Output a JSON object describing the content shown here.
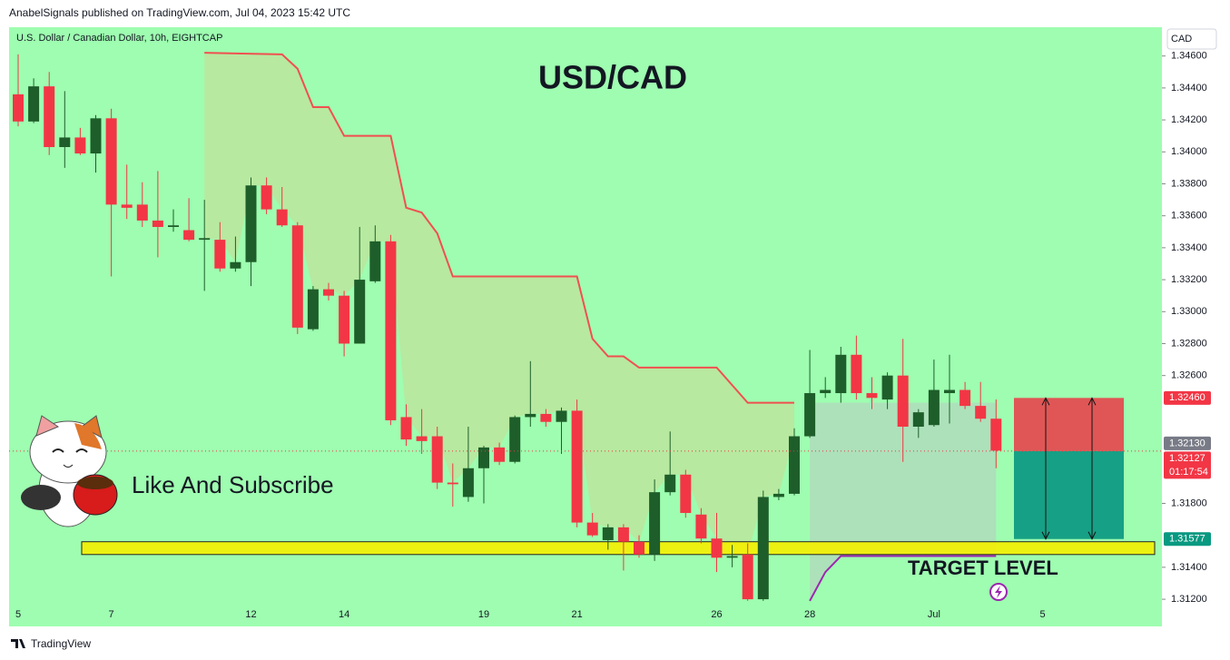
{
  "header": "AnabelSignals published on TradingView.com, Jul 04, 2023 15:42 UTC",
  "footer": "TradingView",
  "chart_data": {
    "type": "candlestick",
    "symbol": "U.S. Dollar / Canadian Dollar, 10h, EIGHTCAP",
    "title": "USD/CAD",
    "currency": "CAD",
    "annotations": [
      "Like And Subscribe",
      "TARGET LEVEL"
    ],
    "up_color": "#1e5e2a",
    "down_color": "#f23645",
    "background": "#9efdb0",
    "open": [
      1.3436,
      1.3419,
      1.3441,
      1.3403,
      1.3409,
      1.3399,
      1.3421,
      1.3367,
      1.3367,
      1.3357,
      1.3353,
      1.3351,
      1.3345,
      1.3345,
      1.3327,
      1.3331,
      1.3379,
      1.3364,
      1.3354,
      1.3289,
      1.3314,
      1.331,
      1.328,
      1.3319,
      1.3344,
      1.3234,
      1.3222,
      1.3222,
      1.3193,
      1.3184,
      1.3202,
      1.3215,
      1.3206,
      1.3234,
      1.3236,
      1.3231,
      1.3238,
      1.3168,
      1.3157,
      1.3165,
      1.3156,
      1.3148,
      1.3187,
      1.3198,
      1.3173,
      1.3158,
      1.3146,
      1.3148,
      1.312,
      1.3184,
      1.3186,
      1.3222,
      1.3249,
      1.3249,
      1.3273,
      1.3249,
      1.3245,
      1.326,
      1.3228,
      1.3229,
      1.3249,
      1.3251,
      1.3241,
      1.3233
    ],
    "high": [
      1.3461,
      1.3446,
      1.345,
      1.3438,
      1.3415,
      1.3423,
      1.3427,
      1.3392,
      1.3381,
      1.3388,
      1.3364,
      1.3371,
      1.337,
      1.3356,
      1.3347,
      1.3384,
      1.3384,
      1.3378,
      1.3356,
      1.3316,
      1.3318,
      1.3313,
      1.3353,
      1.3354,
      1.3348,
      1.3242,
      1.3239,
      1.3228,
      1.3205,
      1.3228,
      1.3216,
      1.3218,
      1.3235,
      1.3269,
      1.3239,
      1.324,
      1.3245,
      1.3174,
      1.3167,
      1.3167,
      1.316,
      1.3195,
      1.3225,
      1.3201,
      1.3177,
      1.3174,
      1.3154,
      1.3155,
      1.3188,
      1.3189,
      1.3227,
      1.3276,
      1.3259,
      1.3278,
      1.3285,
      1.3259,
      1.3262,
      1.3283,
      1.3239,
      1.327,
      1.3273,
      1.3256,
      1.3256,
      1.3245
    ],
    "low": [
      1.3416,
      1.3418,
      1.3398,
      1.339,
      1.3398,
      1.3387,
      1.3322,
      1.3358,
      1.3353,
      1.3334,
      1.335,
      1.3344,
      1.3313,
      1.3325,
      1.3325,
      1.3316,
      1.3361,
      1.3353,
      1.3286,
      1.3288,
      1.3307,
      1.3272,
      1.328,
      1.3318,
      1.3229,
      1.3216,
      1.3211,
      1.3189,
      1.3178,
      1.3181,
      1.318,
      1.3204,
      1.3205,
      1.3228,
      1.3228,
      1.3211,
      1.3165,
      1.3159,
      1.3151,
      1.3138,
      1.3146,
      1.3144,
      1.3185,
      1.3171,
      1.3155,
      1.3137,
      1.314,
      1.3119,
      1.3119,
      1.3182,
      1.3185,
      1.3221,
      1.3246,
      1.3243,
      1.3245,
      1.3239,
      1.3239,
      1.3206,
      1.3221,
      1.3228,
      1.323,
      1.3239,
      1.3231,
      1.3202
    ],
    "close": [
      1.3419,
      1.3441,
      1.3403,
      1.3409,
      1.3399,
      1.3421,
      1.3367,
      1.3365,
      1.3357,
      1.3353,
      1.3354,
      1.3345,
      1.3346,
      1.3327,
      1.3331,
      1.3379,
      1.3364,
      1.3354,
      1.329,
      1.3314,
      1.331,
      1.328,
      1.332,
      1.3344,
      1.3232,
      1.322,
      1.3219,
      1.3193,
      1.3192,
      1.3202,
      1.3215,
      1.3206,
      1.3234,
      1.3236,
      1.3231,
      1.3238,
      1.3168,
      1.316,
      1.3165,
      1.3156,
      1.3148,
      1.3187,
      1.3198,
      1.3174,
      1.3158,
      1.3146,
      1.3147,
      1.312,
      1.3184,
      1.3186,
      1.3222,
      1.3249,
      1.3251,
      1.3273,
      1.3249,
      1.3246,
      1.326,
      1.3228,
      1.3237,
      1.3251,
      1.3251,
      1.3241,
      1.3233,
      1.3213
    ],
    "trend": {
      "color": "#f05050",
      "x": [
        12,
        17,
        18,
        19,
        20,
        21,
        24,
        25,
        26,
        27,
        28,
        36,
        37,
        38,
        39,
        40,
        45,
        47,
        50
      ],
      "values": [
        1.3462,
        1.3461,
        1.3452,
        1.3428,
        1.3428,
        1.341,
        1.341,
        1.3365,
        1.3362,
        1.3349,
        1.3322,
        1.3322,
        1.3283,
        1.3272,
        1.3272,
        1.3265,
        1.3265,
        1.3243,
        1.3243
      ]
    },
    "trend2": {
      "color": "#9c27b0",
      "x": [
        51,
        52,
        53,
        63
      ],
      "values": [
        1.3119,
        1.3137,
        1.3147,
        1.3147
      ]
    },
    "target_zone": [
      1.3148,
      1.3156
    ],
    "position": {
      "stop": 1.3246,
      "entry": 1.32127,
      "target": 1.31577
    },
    "price_tags": [
      {
        "value": 1.3246,
        "label": "1.32460",
        "color": "#f23645"
      },
      {
        "value": 1.3213,
        "label": "1.32130",
        "color": "#787b86"
      },
      {
        "value": 1.32127,
        "label": "1.32127",
        "color": "#f23645"
      },
      {
        "value": 1.31577,
        "label": "1.31577",
        "color": "#089981"
      }
    ],
    "countdown": "01:17:54",
    "ylim": [
      1.3103,
      1.3478
    ],
    "yticks": [
      {
        "value": 1.312,
        "label": "1.31200"
      },
      {
        "value": 1.314,
        "label": "1.31400"
      },
      {
        "value": 1.318,
        "label": "1.31800"
      },
      {
        "value": 1.326,
        "label": "1.32600"
      },
      {
        "value": 1.328,
        "label": "1.32800"
      },
      {
        "value": 1.33,
        "label": "1.33000"
      },
      {
        "value": 1.332,
        "label": "1.33200"
      },
      {
        "value": 1.334,
        "label": "1.33400"
      },
      {
        "value": 1.336,
        "label": "1.33600"
      },
      {
        "value": 1.338,
        "label": "1.33800"
      },
      {
        "value": 1.34,
        "label": "1.34000"
      },
      {
        "value": 1.342,
        "label": "1.34200"
      },
      {
        "value": 1.344,
        "label": "1.34400"
      },
      {
        "value": 1.346,
        "label": "1.34600"
      }
    ],
    "xticks": [
      {
        "value": 0,
        "label": "5"
      },
      {
        "value": 6,
        "label": "7"
      },
      {
        "value": 15,
        "label": "12"
      },
      {
        "value": 21,
        "label": "14"
      },
      {
        "value": 30,
        "label": "19"
      },
      {
        "value": 36,
        "label": "21"
      },
      {
        "value": 45,
        "label": "26"
      },
      {
        "value": 51,
        "label": "28"
      },
      {
        "value": 59,
        "label": "Jul"
      },
      {
        "value": 66,
        "label": "5"
      }
    ]
  }
}
